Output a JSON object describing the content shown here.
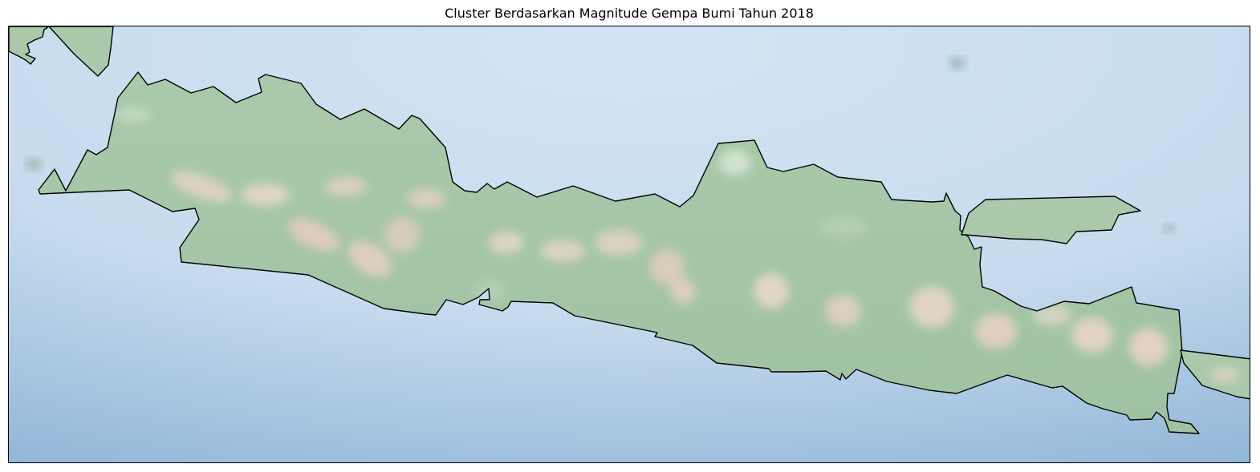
{
  "figure": {
    "title": "Cluster Berdasarkan Magnitude Gempa Bumi Tahun 2018"
  },
  "map": {
    "region": "Java, Indonesia",
    "background": "shaded-relief",
    "colors": {
      "ocean_light": "#cddff0",
      "ocean_deep": "#8eb6d6",
      "land": "#a8c8a8",
      "highland": "#e6cfc4",
      "coastline": "#000000",
      "frame": "#000000"
    }
  }
}
